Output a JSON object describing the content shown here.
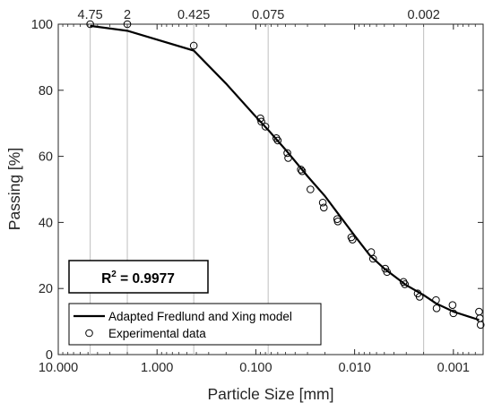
{
  "chart_data": {
    "type": "scatter",
    "xlabel": "Particle Size [mm]",
    "ylabel": "Passing [%]",
    "xscale": "log",
    "xdirection": "reversed",
    "xlim": [
      10,
      0.0005
    ],
    "ylim": [
      0,
      100
    ],
    "x_ticks": [
      {
        "value": 10,
        "label": "10.000"
      },
      {
        "value": 1,
        "label": "1.000"
      },
      {
        "value": 0.1,
        "label": "0.100"
      },
      {
        "value": 0.01,
        "label": "0.010"
      },
      {
        "value": 0.001,
        "label": "0.001"
      }
    ],
    "y_ticks": [
      0,
      20,
      40,
      60,
      80,
      100
    ],
    "top_ticks": [
      {
        "value": 4.75,
        "label": "4.75"
      },
      {
        "value": 2,
        "label": "2"
      },
      {
        "value": 0.425,
        "label": "0.425"
      },
      {
        "value": 0.075,
        "label": "0.075"
      },
      {
        "value": 0.002,
        "label": "0.002"
      }
    ],
    "grid": "vertical lines at sieve sizes",
    "annotation": {
      "text": "R",
      "sup": "2",
      "rest": " = 0.9977"
    },
    "legend_position": "bottom-left",
    "colors": {
      "model": "#000000",
      "markers": "#000000",
      "grid": "#bfbfbf"
    },
    "series": [
      {
        "name": "Adapted Fredlund and Xing model",
        "style": "line",
        "x": [
          4.75,
          2,
          0.425,
          0.2,
          0.1,
          0.075,
          0.05,
          0.03,
          0.02,
          0.015,
          0.01,
          0.007,
          0.005,
          0.003,
          0.002,
          0.0015,
          0.001,
          0.0007,
          0.00055
        ],
        "y": [
          99.5,
          98,
          92,
          82,
          72,
          68,
          62,
          54,
          48,
          43,
          36,
          30,
          26,
          21,
          18,
          15.5,
          13,
          11.5,
          10.5
        ]
      },
      {
        "name": "Experimental data",
        "style": "markers",
        "x": [
          4.75,
          2,
          0.425,
          0.09,
          0.088,
          0.08,
          0.062,
          0.06,
          0.048,
          0.047,
          0.035,
          0.034,
          0.028,
          0.021,
          0.0205,
          0.015,
          0.0148,
          0.0108,
          0.0105,
          0.0068,
          0.0065,
          0.0049,
          0.0047,
          0.0032,
          0.0031,
          0.0023,
          0.0022,
          0.0015,
          0.00148,
          0.00102,
          0.001,
          0.00055,
          0.00054,
          0.00053
        ],
        "y": [
          100,
          100,
          93.5,
          71.5,
          70.5,
          69,
          65.5,
          64.8,
          61,
          59.5,
          56,
          55.5,
          50,
          46,
          44.5,
          41,
          40.3,
          35.5,
          34.8,
          31,
          29,
          26,
          25,
          22,
          21.3,
          18.5,
          17.5,
          16.5,
          14,
          15,
          12.5,
          13,
          11,
          9
        ]
      }
    ]
  }
}
